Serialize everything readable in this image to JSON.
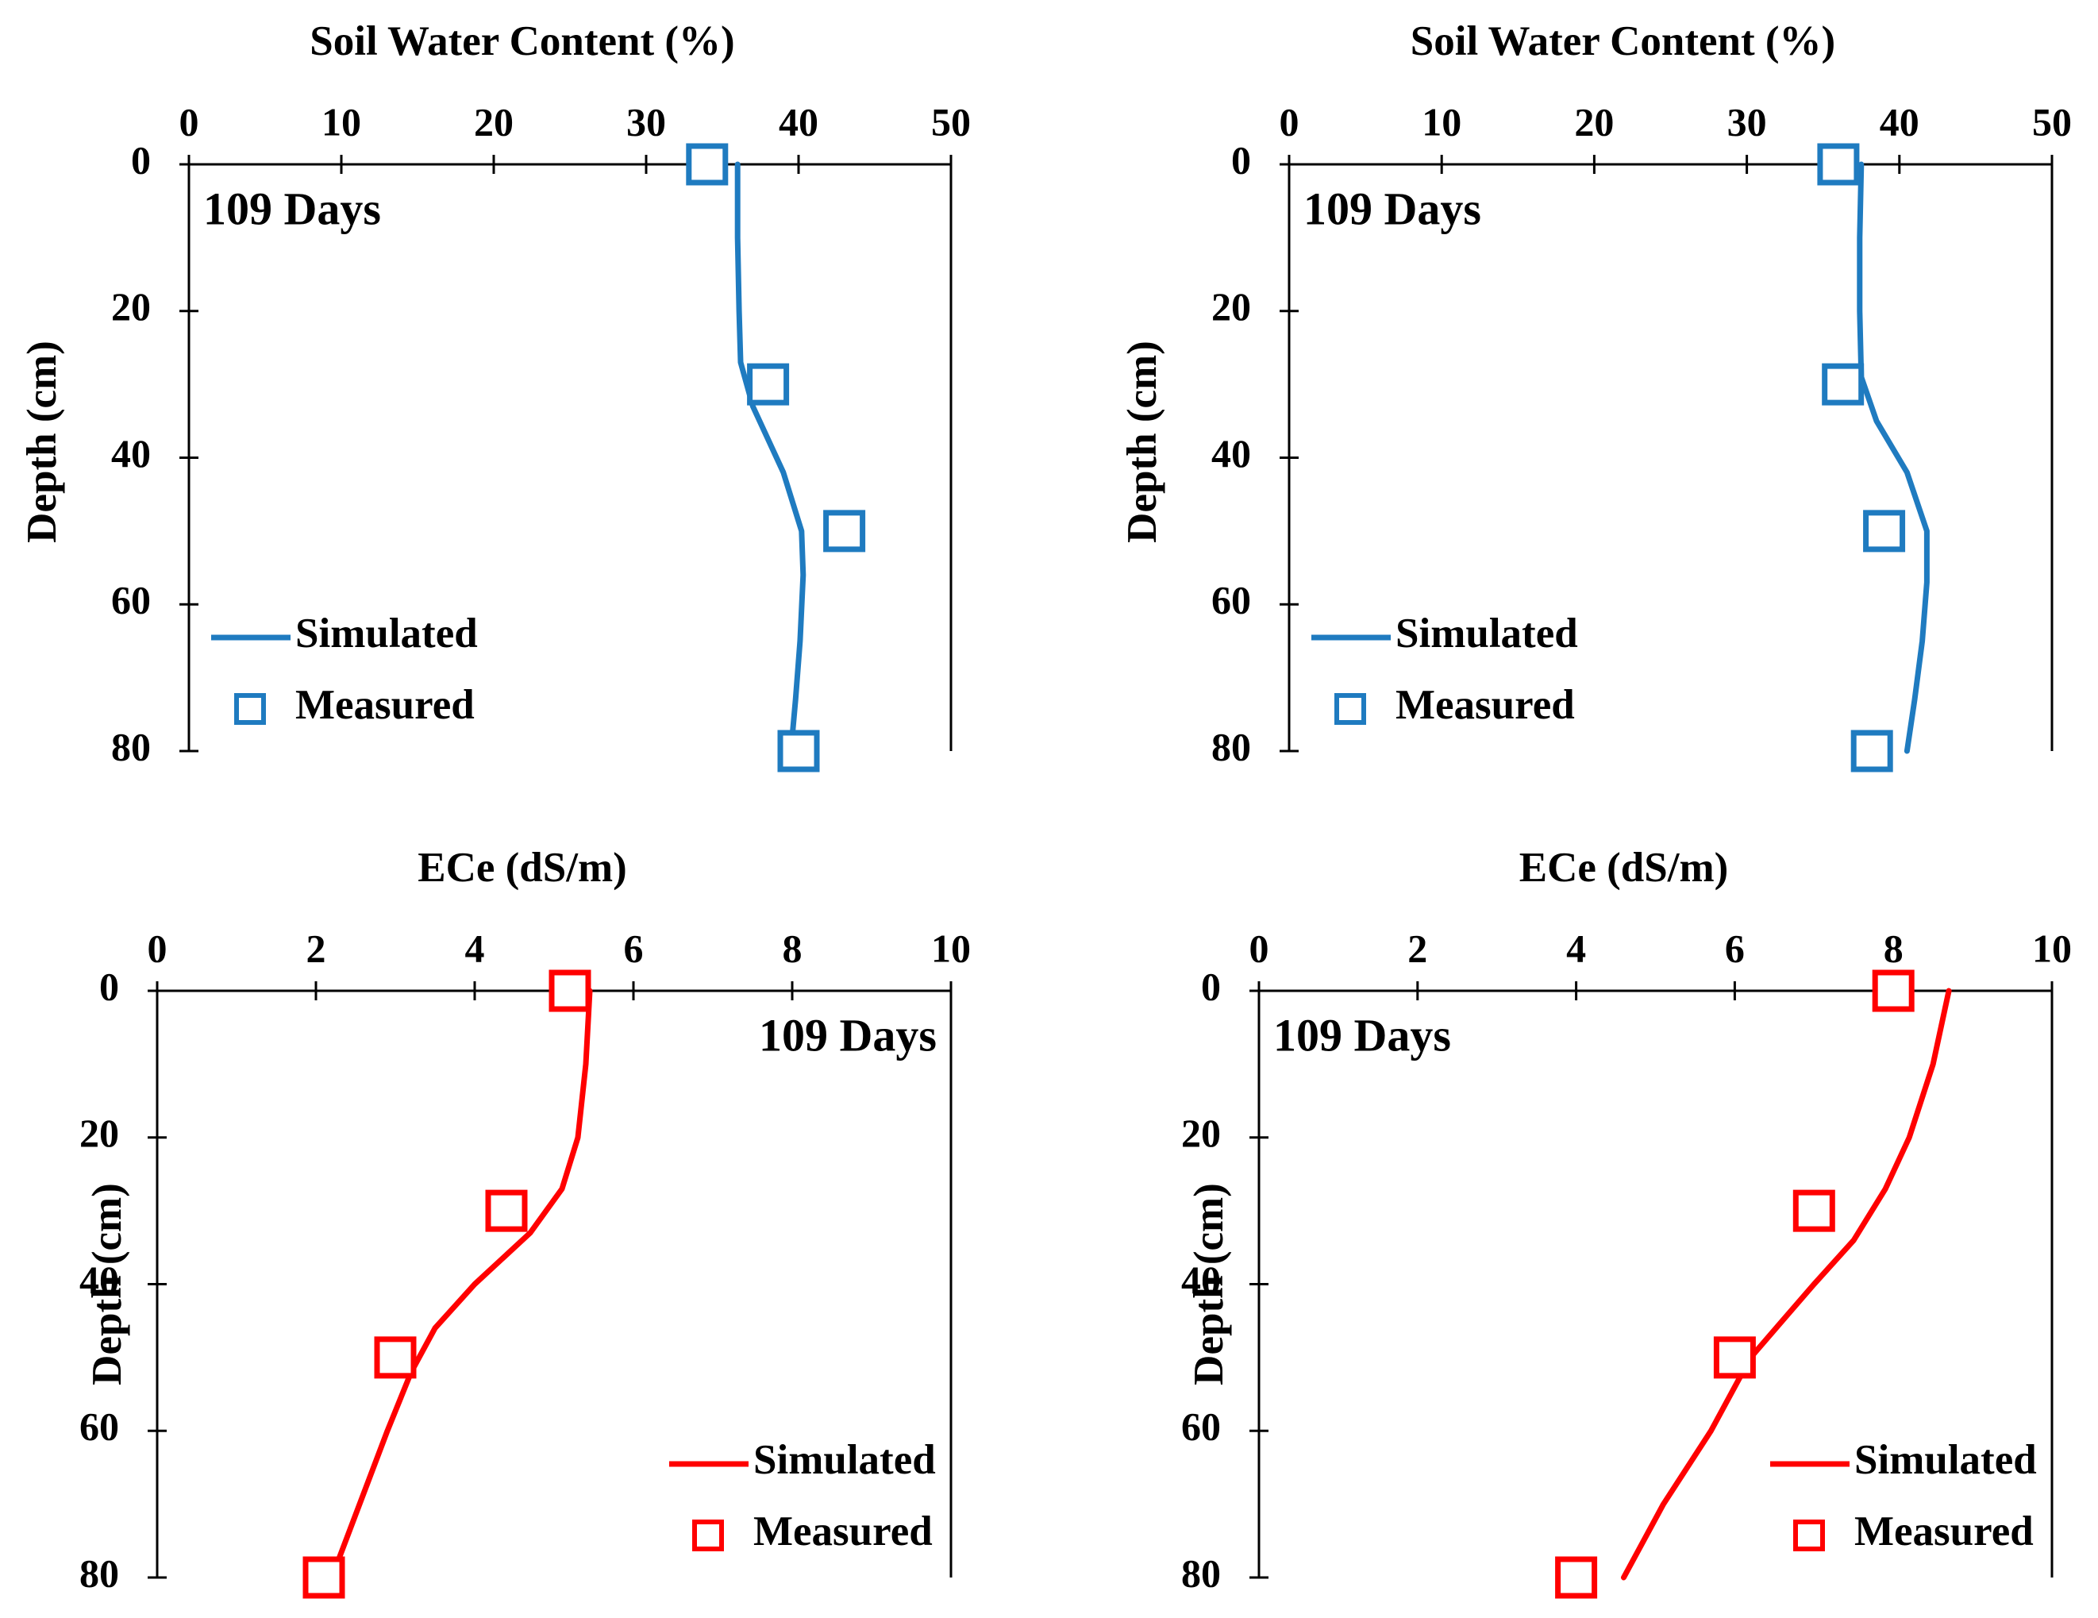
{
  "figure": {
    "panels": [
      {
        "id": "swc-left",
        "xlabel": "Soil Water Content (%)",
        "ylabel": "Depth (cm)",
        "annotation": "109 Days",
        "annotation_position": "top-left",
        "legend_position": "bottom-left",
        "legend": {
          "line": "Simulated",
          "marker": "Measured"
        },
        "color": "#1F7BC0",
        "x_ticks": [
          "0",
          "10",
          "20",
          "30",
          "40",
          "50"
        ],
        "y_ticks": [
          "0",
          "20",
          "40",
          "60",
          "80"
        ]
      },
      {
        "id": "swc-right",
        "xlabel": "Soil Water Content (%)",
        "ylabel": "Depth (cm)",
        "annotation": "109 Days",
        "annotation_position": "top-left",
        "legend_position": "bottom-left",
        "legend": {
          "line": "Simulated",
          "marker": "Measured"
        },
        "color": "#1F7BC0",
        "x_ticks": [
          "0",
          "10",
          "20",
          "30",
          "40",
          "50"
        ],
        "y_ticks": [
          "0",
          "20",
          "40",
          "60",
          "80"
        ]
      },
      {
        "id": "ece-left",
        "xlabel": "ECe (dS/m)",
        "ylabel": "Depth (cm)",
        "annotation": "109 Days",
        "annotation_position": "top-right",
        "legend_position": "bottom-right",
        "legend": {
          "line": "Simulated",
          "marker": "Measured"
        },
        "color": "#FF0000",
        "x_ticks": [
          "0",
          "2",
          "4",
          "6",
          "8",
          "10"
        ],
        "y_ticks": [
          "0",
          "20",
          "40",
          "60",
          "80"
        ]
      },
      {
        "id": "ece-right",
        "xlabel": "ECe (dS/m)",
        "ylabel": "Depth (cm)",
        "annotation": "109 Days",
        "annotation_position": "top-left",
        "legend_position": "bottom-right",
        "legend": {
          "line": "Simulated",
          "marker": "Measured"
        },
        "color": "#FF0000",
        "x_ticks": [
          "0",
          "2",
          "4",
          "6",
          "8",
          "10"
        ],
        "y_ticks": [
          "0",
          "20",
          "40",
          "60",
          "80"
        ]
      }
    ]
  },
  "chart_data": [
    {
      "type": "line",
      "xlabel": "Soil Water Content (%)",
      "ylabel": "Depth (cm)",
      "xlim": [
        0,
        50
      ],
      "ylim": [
        0,
        80
      ],
      "y_inverted": true,
      "x_axis_position": "top",
      "grid": false,
      "series": [
        {
          "name": "Simulated",
          "kind": "line",
          "x": [
            36.0,
            36.0,
            36.1,
            36.2,
            37.0,
            39.0,
            40.2,
            40.3,
            40.1,
            39.8,
            39.5
          ],
          "y": [
            0,
            10,
            20,
            27,
            33,
            42,
            50,
            56,
            65,
            73,
            80
          ]
        },
        {
          "name": "Measured",
          "kind": "marker",
          "x": [
            34,
            38,
            43,
            40
          ],
          "y": [
            0,
            30,
            50,
            80
          ]
        }
      ]
    },
    {
      "type": "line",
      "xlabel": "Soil Water Content (%)",
      "ylabel": "Depth (cm)",
      "xlim": [
        0,
        50
      ],
      "ylim": [
        0,
        80
      ],
      "y_inverted": true,
      "x_axis_position": "top",
      "grid": false,
      "series": [
        {
          "name": "Simulated",
          "kind": "line",
          "x": [
            37.5,
            37.4,
            37.4,
            37.5,
            38.5,
            40.5,
            41.8,
            41.8,
            41.5,
            41.0,
            40.5
          ],
          "y": [
            0,
            10,
            20,
            29,
            35,
            42,
            50,
            57,
            65,
            73,
            80
          ]
        },
        {
          "name": "Measured",
          "kind": "marker",
          "x": [
            36,
            36.3,
            39,
            38.2
          ],
          "y": [
            0,
            30,
            50,
            80
          ]
        }
      ]
    },
    {
      "type": "line",
      "xlabel": "ECe (dS/m)",
      "ylabel": "Depth (cm)",
      "xlim": [
        0,
        10
      ],
      "ylim": [
        0,
        80
      ],
      "y_inverted": true,
      "x_axis_position": "top",
      "grid": false,
      "series": [
        {
          "name": "Simulated",
          "kind": "line",
          "x": [
            5.45,
            5.4,
            5.3,
            5.1,
            4.7,
            4.0,
            3.5,
            3.2,
            2.9,
            2.55,
            2.2
          ],
          "y": [
            0,
            10,
            20,
            27,
            33,
            40,
            46,
            52,
            60,
            70,
            80
          ]
        },
        {
          "name": "Measured",
          "kind": "marker",
          "x": [
            5.2,
            4.4,
            3.0,
            2.1
          ],
          "y": [
            0,
            30,
            50,
            80
          ]
        }
      ]
    },
    {
      "type": "line",
      "xlabel": "ECe (dS/m)",
      "ylabel": "Depth (cm)",
      "xlim": [
        0,
        10
      ],
      "ylim": [
        0,
        80
      ],
      "y_inverted": true,
      "x_axis_position": "top",
      "grid": false,
      "series": [
        {
          "name": "Simulated",
          "kind": "line",
          "x": [
            8.7,
            8.5,
            8.2,
            7.9,
            7.5,
            7.0,
            6.6,
            6.2,
            5.7,
            5.1,
            4.6
          ],
          "y": [
            0,
            10,
            20,
            27,
            34,
            40,
            45,
            50,
            60,
            70,
            80
          ]
        },
        {
          "name": "Measured",
          "kind": "marker",
          "x": [
            8.0,
            7.0,
            6.0,
            4.0
          ],
          "y": [
            0,
            30,
            50,
            80
          ]
        }
      ]
    }
  ]
}
